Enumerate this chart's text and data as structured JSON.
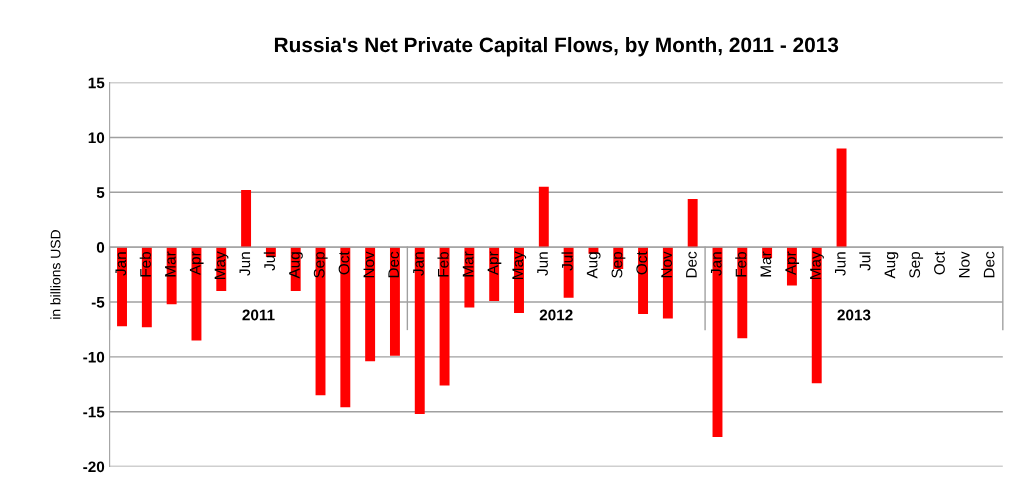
{
  "chart_data": {
    "type": "bar",
    "title": "Russia's Net Private Capital Flows, by Month, 2011 - 2013",
    "ylabel": "in billions USD",
    "categories": [
      "Jan",
      "Feb",
      "Mar",
      "Apr",
      "May",
      "Jun",
      "Jul",
      "Aug",
      "Sep",
      "Oct",
      "Nov",
      "Dec",
      "Jan",
      "Feb",
      "Mar",
      "Apr",
      "May",
      "Jun",
      "Jul",
      "Aug",
      "Sep",
      "Oct",
      "Nov",
      "Dec",
      "Jan",
      "Feb",
      "Mar",
      "Apr",
      "May",
      "Jun",
      "Jul",
      "Aug",
      "Sep",
      "Oct",
      "Nov",
      "Dec"
    ],
    "values": [
      -7.2,
      -7.3,
      -5.2,
      -8.5,
      -4.0,
      5.2,
      -0.9,
      -4.0,
      -13.5,
      -14.6,
      -10.4,
      -9.9,
      -15.2,
      -12.6,
      -5.5,
      -4.9,
      -6.0,
      5.5,
      -4.6,
      -0.6,
      -2.0,
      -6.1,
      -6.5,
      4.4,
      -17.3,
      -8.3,
      -1.0,
      -3.5,
      -12.4,
      9.0,
      null,
      null,
      null,
      null,
      null,
      null
    ],
    "color": "#ff0000",
    "annotations": [
      "2011",
      "2012",
      "2013"
    ],
    "ylim": [
      -20,
      15
    ],
    "yticks": [
      -20,
      -15,
      -10,
      -5,
      0,
      5,
      10,
      15
    ],
    "grid": "y",
    "legend": false
  }
}
